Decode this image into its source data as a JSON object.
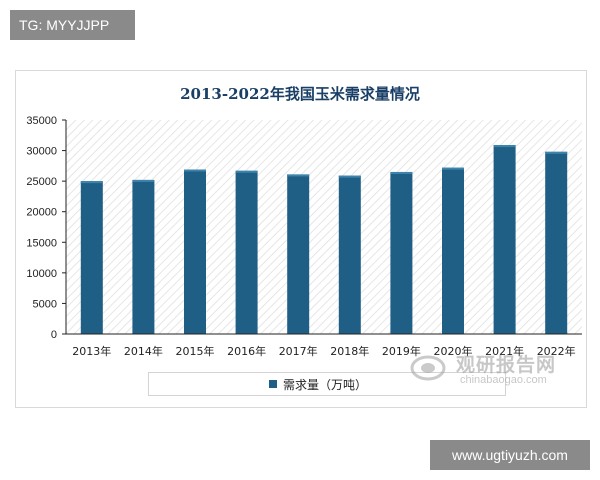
{
  "watermarks": {
    "tg": "TG: MYYJJPP",
    "url": "www.ugtiyuzh.com",
    "brand_cn": "观研报告网",
    "brand_en": "chinabaogao.com"
  },
  "colors": {
    "bar": "#1f5f86",
    "axis": "#222222",
    "hatch": "#e4e4e4"
  },
  "chart_data": {
    "type": "bar",
    "title": "2013-2022年我国玉米需求量情况",
    "categories": [
      "2013年",
      "2014年",
      "2015年",
      "2016年",
      "2017年",
      "2018年",
      "2019年",
      "2020年",
      "2021年",
      "2022年"
    ],
    "series": [
      {
        "name": "需求量（万吨）",
        "values": [
          25000,
          25200,
          26900,
          26700,
          26100,
          25900,
          26500,
          27200,
          30900,
          29800
        ]
      }
    ],
    "xlabel": "",
    "ylabel": "",
    "ylim": [
      0,
      35000
    ],
    "yticks": [
      "0",
      "5000",
      "10000",
      "15000",
      "20000",
      "25000",
      "30000",
      "35000"
    ],
    "grid": false,
    "legend": "bottom"
  }
}
